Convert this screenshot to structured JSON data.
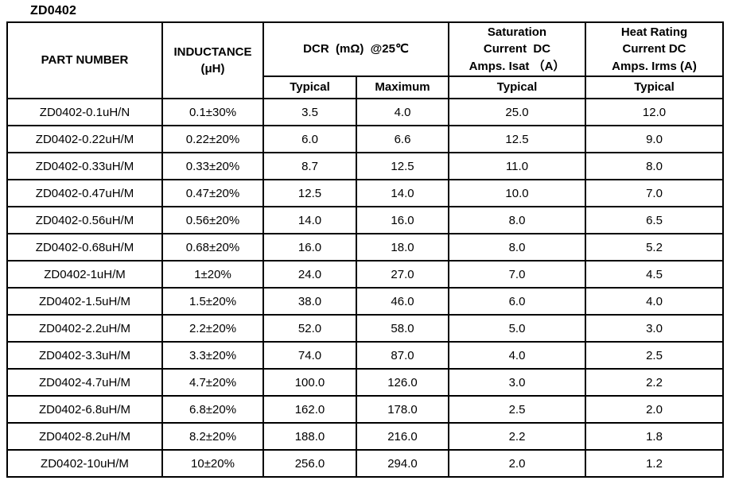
{
  "page_title": "ZD0402",
  "table": {
    "header": {
      "part_number": "PART NUMBER",
      "inductance": "INDUCTANCE\n(μH)",
      "dcr": "DCR  (mΩ)  @25℃",
      "saturation": "Saturation\nCurrent  DC\nAmps. Isat （A）",
      "heat_rating": "Heat Rating\nCurrent DC\nAmps. Irms (A)",
      "sub": [
        "Typical",
        "Maximum",
        "Typical",
        "Typical"
      ]
    },
    "rows": [
      [
        "ZD0402-0.1uH/N",
        "0.1±30%",
        "3.5",
        "4.0",
        "25.0",
        "12.0"
      ],
      [
        "ZD0402-0.22uH/M",
        "0.22±20%",
        "6.0",
        "6.6",
        "12.5",
        "9.0"
      ],
      [
        "ZD0402-0.33uH/M",
        "0.33±20%",
        "8.7",
        "12.5",
        "11.0",
        "8.0"
      ],
      [
        "ZD0402-0.47uH/M",
        "0.47±20%",
        "12.5",
        "14.0",
        "10.0",
        "7.0"
      ],
      [
        "ZD0402-0.56uH/M",
        "0.56±20%",
        "14.0",
        "16.0",
        "8.0",
        "6.5"
      ],
      [
        "ZD0402-0.68uH/M",
        "0.68±20%",
        "16.0",
        "18.0",
        "8.0",
        "5.2"
      ],
      [
        "ZD0402-1uH/M",
        "1±20%",
        "24.0",
        "27.0",
        "7.0",
        "4.5"
      ],
      [
        "ZD0402-1.5uH/M",
        "1.5±20%",
        "38.0",
        "46.0",
        "6.0",
        "4.0"
      ],
      [
        "ZD0402-2.2uH/M",
        "2.2±20%",
        "52.0",
        "58.0",
        "5.0",
        "3.0"
      ],
      [
        "ZD0402-3.3uH/M",
        "3.3±20%",
        "74.0",
        "87.0",
        "4.0",
        "2.5"
      ],
      [
        "ZD0402-4.7uH/M",
        "4.7±20%",
        "100.0",
        "126.0",
        "3.0",
        "2.2"
      ],
      [
        "ZD0402-6.8uH/M",
        "6.8±20%",
        "162.0",
        "178.0",
        "2.5",
        "2.0"
      ],
      [
        "ZD0402-8.2uH/M",
        "8.2±20%",
        "188.0",
        "216.0",
        "2.2",
        "1.8"
      ],
      [
        "ZD0402-10uH/M",
        "10±20%",
        "256.0",
        "294.0",
        "2.0",
        "1.2"
      ]
    ]
  }
}
